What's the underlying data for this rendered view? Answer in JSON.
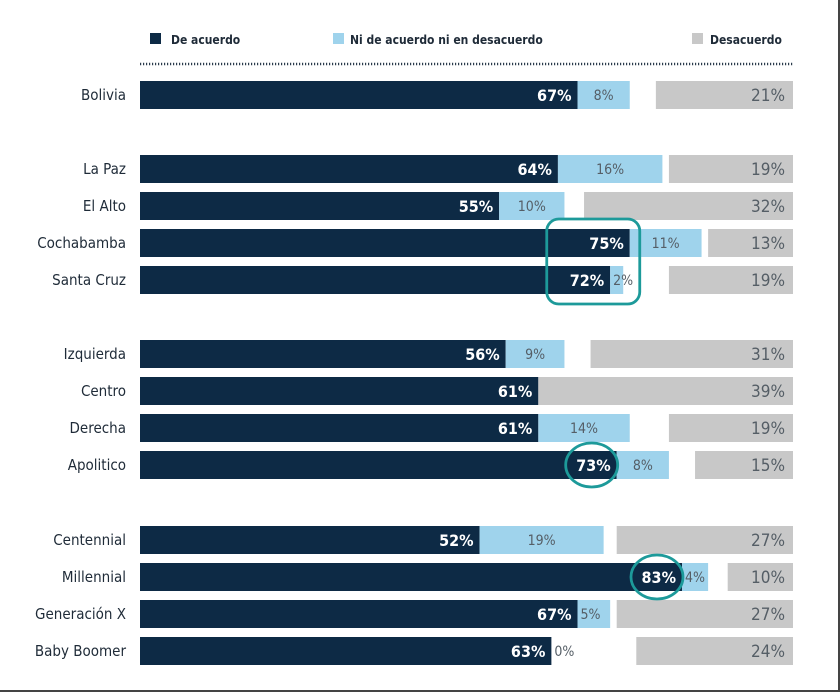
{
  "colors": {
    "agree": "#0d2a45",
    "neutral": "#9fd3ec",
    "disagree": "#c8c8c8",
    "highlight": "#1d9a9a",
    "dotted": "#2b3b4c"
  },
  "legend": {
    "agree": "De acuerdo",
    "neutral": "Ni de acuerdo ni en desacuerdo",
    "disagree": "Desacuerdo"
  },
  "chart_data": {
    "type": "bar",
    "orientation": "horizontal",
    "stacked": true,
    "xlim": [
      0,
      100
    ],
    "grid": false,
    "legend_position": "top",
    "series_names": [
      "De acuerdo",
      "Ni de acuerdo ni en desacuerdo",
      "Desacuerdo"
    ],
    "groups": [
      {
        "rows": [
          {
            "label": "Bolivia",
            "agree": 67,
            "neutral": 8,
            "disagree": 21
          }
        ]
      },
      {
        "rows": [
          {
            "label": "La Paz",
            "agree": 64,
            "neutral": 16,
            "disagree": 19
          },
          {
            "label": "El Alto",
            "agree": 55,
            "neutral": 10,
            "disagree": 32
          },
          {
            "label": "Cochabamba",
            "agree": 75,
            "neutral": 11,
            "disagree": 13
          },
          {
            "label": "Santa Cruz",
            "agree": 72,
            "neutral": 2,
            "disagree": 19
          }
        ]
      },
      {
        "rows": [
          {
            "label": "Izquierda",
            "agree": 56,
            "neutral": 9,
            "disagree": 31
          },
          {
            "label": "Centro",
            "agree": 61,
            "neutral": 0,
            "disagree": 39
          },
          {
            "label": "Derecha",
            "agree": 61,
            "neutral": 14,
            "disagree": 19
          },
          {
            "label": "Apolitico",
            "agree": 73,
            "neutral": 8,
            "disagree": 15
          }
        ]
      },
      {
        "rows": [
          {
            "label": "Centennial",
            "agree": 52,
            "neutral": 19,
            "disagree": 27
          },
          {
            "label": "Millennial",
            "agree": 83,
            "neutral": 4,
            "disagree": 10
          },
          {
            "label": "Generación X",
            "agree": 67,
            "neutral": 5,
            "disagree": 27
          },
          {
            "label": "Baby Boomer",
            "agree": 63,
            "neutral": 0,
            "disagree": 24
          }
        ]
      }
    ],
    "hidden_neutral_labels": [
      "Centro"
    ],
    "highlights": [
      {
        "shape": "rounded-rect",
        "rows": [
          "Cochabamba",
          "Santa Cruz"
        ]
      },
      {
        "shape": "ellipse",
        "rows": [
          "Apolitico"
        ]
      },
      {
        "shape": "ellipse",
        "rows": [
          "Millennial"
        ]
      }
    ]
  }
}
